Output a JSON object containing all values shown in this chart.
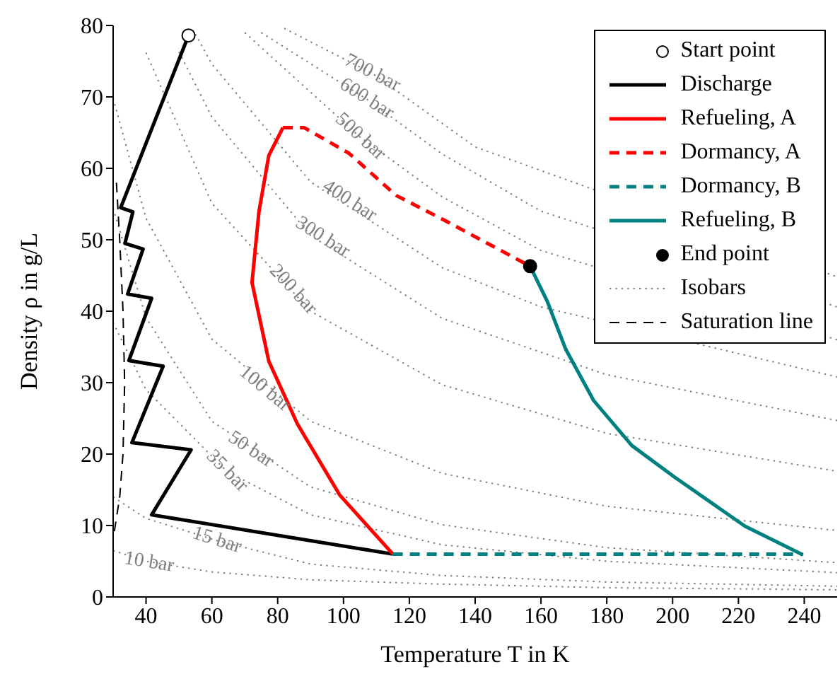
{
  "chart_data": {
    "type": "line",
    "xlabel": "Temperature T in K",
    "ylabel": "Density ρ in g/L",
    "xlim": [
      30,
      250
    ],
    "xticks": [
      40,
      60,
      80,
      100,
      120,
      140,
      160,
      180,
      200,
      220,
      240
    ],
    "ylim": [
      0,
      80
    ],
    "yticks": [
      0,
      10,
      20,
      30,
      40,
      50,
      60,
      70,
      80
    ],
    "legend": "top right",
    "series": [
      {
        "name": "Start point",
        "type": "scatter",
        "marker": "circle",
        "color": "#ffffff",
        "x": [
          52.9
        ],
        "values": [
          78.6
        ]
      },
      {
        "name": "Discharge",
        "type": "line",
        "line_style": "solid",
        "color": "#000000",
        "x": [
          52.9,
          32.3,
          36,
          33.6,
          39.1,
          34.4,
          41.7,
          34.8,
          45.2,
          35.7,
          53.7,
          41.7,
          115
        ],
        "values": [
          78.6,
          54.5,
          53.9,
          49.5,
          48.7,
          42.4,
          41.8,
          33.1,
          32.3,
          21.6,
          20.6,
          11.5,
          6
        ]
      },
      {
        "name": "Refueling, A",
        "type": "line",
        "line_style": "solid",
        "color": "#ff0000",
        "x": [
          115,
          98.8,
          86,
          77.3,
          72.2,
          74.3,
          77.3,
          81.6
        ],
        "values": [
          6,
          14.3,
          24.2,
          33,
          44,
          53.9,
          61.8,
          65.7
        ]
      },
      {
        "name": "Dormancy, A",
        "type": "line",
        "line_style": "dashed",
        "color": "#ff0000",
        "x": [
          81.6,
          88,
          101.7,
          116,
          130,
          156.7
        ],
        "values": [
          65.7,
          65.7,
          62.1,
          56.2,
          52.9,
          46.3
        ]
      },
      {
        "name": "Dormancy, B",
        "type": "line",
        "line_style": "dashed",
        "color": "#008080",
        "x": [
          115,
          239.6
        ],
        "values": [
          6,
          6
        ]
      },
      {
        "name": "Refueling, B",
        "type": "line",
        "line_style": "solid",
        "color": "#008080",
        "x": [
          239.6,
          222,
          200.5,
          187.6,
          176,
          167.5,
          161.9,
          156.7
        ],
        "values": [
          5.9,
          9.9,
          16.8,
          21.2,
          27.5,
          34.7,
          41.4,
          46.3
        ]
      },
      {
        "name": "End point",
        "type": "scatter",
        "marker": "circle",
        "color": "#000000",
        "x": [
          156.7
        ],
        "values": [
          46.3
        ]
      },
      {
        "name": "Isobars",
        "type": "line",
        "line_style": "dotted",
        "color": "#808080",
        "x": [
          30,
          40,
          60,
          90,
          130,
          180,
          250
        ],
        "values": [
          6.5,
          5.0,
          3.5,
          2.4,
          1.8,
          1.3,
          1.0
        ]
      },
      {
        "type": "line",
        "line_style": "dotted",
        "color": "#808080",
        "x": [
          30,
          40,
          61.5,
          90,
          130,
          180,
          250
        ],
        "values": [
          14,
          11,
          7.9,
          4.6,
          3,
          2.1,
          1.5
        ]
      },
      {
        "type": "line",
        "line_style": "dotted",
        "color": "#808080",
        "x": [
          30,
          40,
          64.5,
          90,
          130,
          180,
          250
        ],
        "values": [
          38.4,
          29,
          17.6,
          11.5,
          7.3,
          5,
          3.4
        ]
      },
      {
        "type": "line",
        "line_style": "dotted",
        "color": "#808080",
        "x": [
          30,
          40,
          60,
          90,
          130,
          180,
          250
        ],
        "values": [
          54.4,
          39.1,
          24.6,
          15.4,
          10.1,
          6.9,
          4.8
        ]
      },
      {
        "type": "line",
        "line_style": "dotted",
        "color": "#808080",
        "x": [
          30,
          40,
          60,
          90,
          130,
          180,
          250
        ],
        "values": [
          69.8,
          53,
          36.1,
          24.6,
          17.3,
          12.7,
          9.3
        ]
      },
      {
        "type": "line",
        "line_style": "dotted",
        "color": "#808080",
        "x": [
          40,
          60,
          90,
          130,
          180,
          250
        ],
        "values": [
          76.2,
          55.1,
          40,
          29.7,
          22.9,
          17.6
        ]
      },
      {
        "type": "line",
        "line_style": "dotted",
        "color": "#808080",
        "x": [
          50,
          60,
          90,
          130,
          180,
          250
        ],
        "values": [
          76.3,
          67.2,
          50.6,
          39,
          31.1,
          24.7
        ]
      },
      {
        "type": "line",
        "line_style": "dotted",
        "color": "#808080",
        "x": [
          55,
          60,
          90,
          130,
          160,
          250
        ],
        "values": [
          78.8,
          74.6,
          58.1,
          46.1,
          40.6,
          30.8
        ]
      },
      {
        "type": "line",
        "line_style": "dotted",
        "color": "#808080",
        "x": [
          70,
          105,
          130,
          160,
          250
        ],
        "values": [
          79,
          64.4,
          56,
          48.5,
          36
        ]
      },
      {
        "type": "line",
        "line_style": "dotted",
        "color": "#808080",
        "x": [
          75,
          107,
          130,
          160,
          250
        ],
        "values": [
          79,
          69.7,
          62,
          54,
          40.6
        ]
      },
      {
        "type": "line",
        "line_style": "dotted",
        "color": "#808080",
        "x": [
          82,
          108.7,
          140,
          250
        ],
        "values": [
          79.6,
          73.3,
          63,
          44.8
        ]
      },
      {
        "name": "Saturation line",
        "type": "line",
        "line_style": "dashed",
        "color": "#000000",
        "x": [
          31,
          32,
          33,
          33.5,
          33,
          32,
          30.3
        ],
        "values": [
          58,
          50,
          40,
          30,
          20,
          14,
          9
        ]
      }
    ],
    "annotations": [
      {
        "text": "10 bar",
        "x": 40.9,
        "y": 4.8
      },
      {
        "text": "15 bar",
        "x": 61.5,
        "y": 7.9
      },
      {
        "text": "35 bar",
        "x": 64.5,
        "y": 17.6
      },
      {
        "text": "50 bar",
        "x": 71.8,
        "y": 20.6
      },
      {
        "text": "100 bar",
        "x": 76,
        "y": 29.1
      },
      {
        "text": "200 bar",
        "x": 84.6,
        "y": 43
      },
      {
        "text": "300 bar",
        "x": 93.6,
        "y": 50.3
      },
      {
        "text": "400 bar",
        "x": 101.8,
        "y": 55.4
      },
      {
        "text": "500 bar",
        "x": 105,
        "y": 64.4
      },
      {
        "text": "600 bar",
        "x": 107,
        "y": 69.7
      },
      {
        "text": "700 bar",
        "x": 108.7,
        "y": 73.3
      }
    ]
  }
}
